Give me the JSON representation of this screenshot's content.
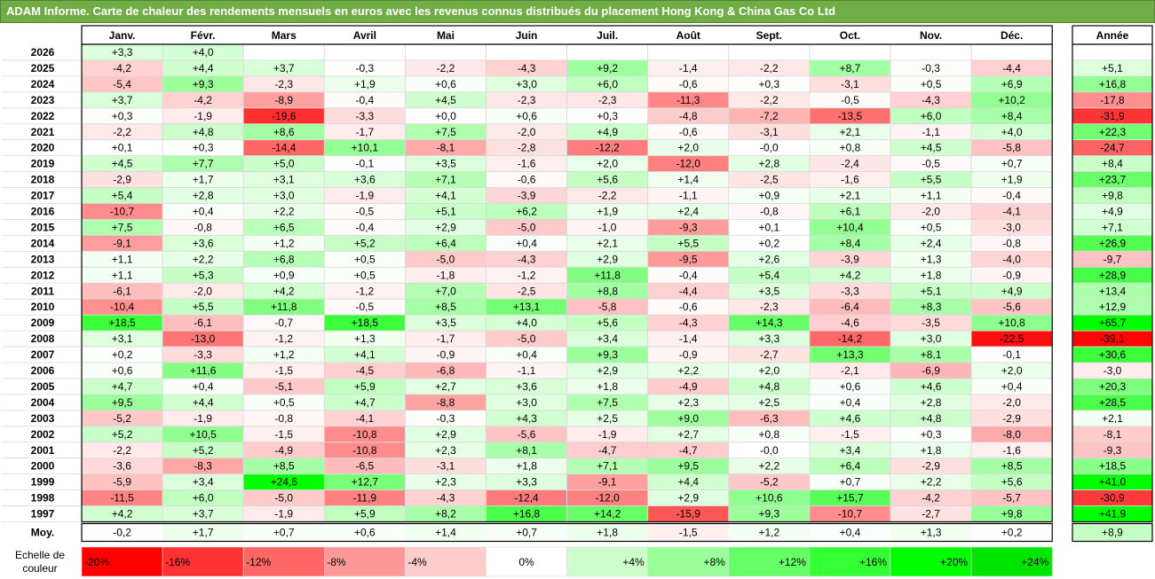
{
  "title": "ADAM Informe. Carte de chaleur des rendements mensuels en euros avec les revenus connus distribués du placement Hong Kong & China Gas Co Ltd",
  "chart_data": {
    "type": "heatmap",
    "months": [
      "Janv.",
      "Févr.",
      "Mars",
      "Avril",
      "Mai",
      "Juin",
      "Juil.",
      "Août",
      "Sept.",
      "Oct.",
      "Nov.",
      "Déc."
    ],
    "year_column_label": "Année",
    "average_row_label": "Moy.",
    "rows": [
      {
        "year": "2026",
        "values": [
          "+3,3",
          "+4,0",
          "",
          "",
          "",
          "",
          "",
          "",
          "",
          "",
          "",
          ""
        ],
        "annual": ""
      },
      {
        "year": "2025",
        "values": [
          "-4,2",
          "+4,4",
          "+3,7",
          "-0,3",
          "-2,2",
          "-4,3",
          "+9,2",
          "-1,4",
          "-2,2",
          "+8,7",
          "-0,3",
          "-4,4"
        ],
        "annual": "+5,1"
      },
      {
        "year": "2024",
        "values": [
          "-5,4",
          "+9,3",
          "-2,3",
          "+1,9",
          "+0,6",
          "+3,0",
          "+6,0",
          "-0,6",
          "+0,3",
          "-3,1",
          "+0,5",
          "+6,9"
        ],
        "annual": "+16,8"
      },
      {
        "year": "2023",
        "values": [
          "+3,7",
          "-4,2",
          "-8,9",
          "-0,4",
          "+4,5",
          "-2,3",
          "-2,3",
          "-11,3",
          "-2,2",
          "-0,5",
          "-4,3",
          "+10,2"
        ],
        "annual": "-17,8"
      },
      {
        "year": "2022",
        "values": [
          "+0,3",
          "-1,9",
          "-19,6",
          "-3,3",
          "+0,0",
          "+0,6",
          "+0,3",
          "-4,8",
          "-7,2",
          "-13,5",
          "+6,0",
          "+8,4"
        ],
        "annual": "-31,9"
      },
      {
        "year": "2021",
        "values": [
          "-2,2",
          "+4,8",
          "+8,6",
          "-1,7",
          "+7,5",
          "-2,0",
          "+4,9",
          "-0,6",
          "-3,1",
          "+2,1",
          "-1,1",
          "+4,0"
        ],
        "annual": "+22,3"
      },
      {
        "year": "2020",
        "values": [
          "+0,1",
          "+0,3",
          "-14,4",
          "+10,1",
          "-8,1",
          "-2,8",
          "-12,2",
          "+2,0",
          "-0,0",
          "+0,8",
          "+4,5",
          "-5,8"
        ],
        "annual": "-24,7"
      },
      {
        "year": "2019",
        "values": [
          "+4,5",
          "+7,7",
          "+5,0",
          "-0,1",
          "+3,5",
          "-1,6",
          "+2,0",
          "-12,0",
          "+2,8",
          "-2,4",
          "-0,5",
          "+0,7"
        ],
        "annual": "+8,4"
      },
      {
        "year": "2018",
        "values": [
          "-2,9",
          "+1,7",
          "+3,1",
          "+3,6",
          "+7,1",
          "-0,6",
          "+5,6",
          "+1,4",
          "-2,5",
          "-1,6",
          "+5,5",
          "+1,9"
        ],
        "annual": "+23,7"
      },
      {
        "year": "2017",
        "values": [
          "+5,4",
          "+2,8",
          "+3,0",
          "-1,9",
          "+4,1",
          "-3,9",
          "-2,2",
          "-1,1",
          "+0,9",
          "+2,1",
          "+1,1",
          "-0,4"
        ],
        "annual": "+9,8"
      },
      {
        "year": "2016",
        "values": [
          "-10,7",
          "+0,4",
          "+2,2",
          "-0,5",
          "+5,1",
          "+6,2",
          "+1,9",
          "+2,4",
          "-0,8",
          "+6,1",
          "-2,0",
          "-4,1"
        ],
        "annual": "+4,9"
      },
      {
        "year": "2015",
        "values": [
          "+7,5",
          "-0,8",
          "+6,5",
          "-0,4",
          "+2,9",
          "-5,0",
          "-1,0",
          "-9,3",
          "+0,1",
          "+10,4",
          "+0,5",
          "-3,0"
        ],
        "annual": "+7,1"
      },
      {
        "year": "2014",
        "values": [
          "-9,1",
          "+3,6",
          "+1,2",
          "+5,2",
          "+6,4",
          "+0,4",
          "+2,1",
          "+5,5",
          "+0,2",
          "+8,4",
          "+2,4",
          "-0,8"
        ],
        "annual": "+26,9"
      },
      {
        "year": "2013",
        "values": [
          "+1,1",
          "+2,2",
          "+6,8",
          "+0,5",
          "-5,0",
          "-4,3",
          "+2,9",
          "-9,5",
          "+2,6",
          "-3,9",
          "+1,3",
          "-4,0"
        ],
        "annual": "-9,7"
      },
      {
        "year": "2012",
        "values": [
          "+1,1",
          "+5,3",
          "+0,9",
          "+0,5",
          "-1,8",
          "-1,2",
          "+11,8",
          "-0,4",
          "+5,4",
          "+4,2",
          "+1,8",
          "-0,9"
        ],
        "annual": "+28,9"
      },
      {
        "year": "2011",
        "values": [
          "-6,1",
          "-2,0",
          "+4,2",
          "-1,2",
          "+7,0",
          "-2,5",
          "+8,8",
          "-4,4",
          "+3,5",
          "-3,3",
          "+5,1",
          "+4,9"
        ],
        "annual": "+13,4"
      },
      {
        "year": "2010",
        "values": [
          "-10,4",
          "+5,5",
          "+11,8",
          "-0,5",
          "+8,5",
          "+13,1",
          "-5,8",
          "-0,6",
          "-2,3",
          "-6,4",
          "+8,3",
          "-5,6"
        ],
        "annual": "+12,9"
      },
      {
        "year": "2009",
        "values": [
          "+18,5",
          "-6,1",
          "-0,7",
          "+18,5",
          "+3,5",
          "+4,0",
          "+5,6",
          "-4,3",
          "+14,3",
          "-4,6",
          "-3,5",
          "+10,8"
        ],
        "annual": "+65,7"
      },
      {
        "year": "2008",
        "values": [
          "+3,1",
          "-13,0",
          "-1,2",
          "+1,3",
          "-1,7",
          "-5,0",
          "+3,4",
          "-1,4",
          "+3,3",
          "-14,2",
          "+3,0",
          "-22,5"
        ],
        "annual": "-39,1"
      },
      {
        "year": "2007",
        "values": [
          "+0,2",
          "-3,3",
          "+1,2",
          "+4,1",
          "-0,9",
          "+0,4",
          "+9,3",
          "-0,9",
          "-2,7",
          "+13,3",
          "+8,1",
          "-0,1"
        ],
        "annual": "+30,6"
      },
      {
        "year": "2006",
        "values": [
          "+0,6",
          "+11,6",
          "-1,5",
          "-4,5",
          "-6,8",
          "-1,1",
          "+2,9",
          "+2,2",
          "+2,0",
          "-2,1",
          "-6,9",
          "+2,0"
        ],
        "annual": "-3,0"
      },
      {
        "year": "2005",
        "values": [
          "+4,7",
          "+0,4",
          "-5,1",
          "+5,9",
          "+2,7",
          "+3,6",
          "+1,8",
          "-4,9",
          "+4,8",
          "+0,6",
          "+4,6",
          "+0,4"
        ],
        "annual": "+20,3"
      },
      {
        "year": "2004",
        "values": [
          "+9,5",
          "+4,4",
          "+0,5",
          "+4,7",
          "-8,8",
          "+3,0",
          "+7,5",
          "+2,3",
          "+2,5",
          "+0,4",
          "+2,8",
          "-2,0"
        ],
        "annual": "+28,5"
      },
      {
        "year": "2003",
        "values": [
          "-5,2",
          "-1,9",
          "-0,8",
          "-4,1",
          "-0,3",
          "+4,3",
          "+2,5",
          "+9,0",
          "-6,3",
          "+4,6",
          "+4,8",
          "-2,9"
        ],
        "annual": "+2,1"
      },
      {
        "year": "2002",
        "values": [
          "+5,2",
          "+10,5",
          "-1,5",
          "-10,8",
          "+2,9",
          "-5,6",
          "-1,9",
          "+2,7",
          "+0,8",
          "-1,5",
          "+0,3",
          "-8,0"
        ],
        "annual": "-8,1"
      },
      {
        "year": "2001",
        "values": [
          "-2,2",
          "+5,2",
          "-4,9",
          "-10,8",
          "+2,3",
          "+8,1",
          "-4,7",
          "-4,7",
          "-0,0",
          "+3,4",
          "+1,8",
          "-1,6"
        ],
        "annual": "-9,3"
      },
      {
        "year": "2000",
        "values": [
          "-3,6",
          "-8,3",
          "+8,5",
          "-6,5",
          "-3,1",
          "+1,8",
          "+7,1",
          "+9,5",
          "+2,2",
          "+6,4",
          "-2,9",
          "+8,5"
        ],
        "annual": "+18,5"
      },
      {
        "year": "1999",
        "values": [
          "-5,9",
          "+3,4",
          "+24,6",
          "+12,7",
          "+2,3",
          "+3,3",
          "-9,1",
          "+4,4",
          "-5,2",
          "+0,7",
          "+2,2",
          "+5,6"
        ],
        "annual": "+41,0"
      },
      {
        "year": "1998",
        "values": [
          "-11,5",
          "+6,0",
          "-5,0",
          "-11,9",
          "-4,3",
          "-12,4",
          "-12,0",
          "+2,9",
          "+10,6",
          "+15,7",
          "-4,2",
          "-5,7"
        ],
        "annual": "-30,9"
      },
      {
        "year": "1997",
        "values": [
          "+4,2",
          "+3,7",
          "-1,9",
          "+5,9",
          "+8,2",
          "+16,8",
          "+14,2",
          "-15,9",
          "+9,3",
          "-10,7",
          "-2,7",
          "+9,8"
        ],
        "annual": "+41,9"
      }
    ],
    "average": {
      "values": [
        "-0,2",
        "+1,7",
        "+0,7",
        "+0,6",
        "+1,4",
        "+0,7",
        "+1,8",
        "-1,5",
        "+1,2",
        "+0,4",
        "+1,3",
        "+0,2"
      ],
      "annual": "+8,9"
    },
    "scale_label": "Echelle de couleur",
    "scale": [
      {
        "label": "-20%",
        "value": -20,
        "color": "#ff0000"
      },
      {
        "label": "-16%",
        "value": -16,
        "color": "#ff3333"
      },
      {
        "label": "-12%",
        "value": -12,
        "color": "#ff6666"
      },
      {
        "label": "-8%",
        "value": -8,
        "color": "#ff9999"
      },
      {
        "label": "-4%",
        "value": -4,
        "color": "#ffcccc"
      },
      {
        "label": "0%",
        "value": 0,
        "color": "#ffffff"
      },
      {
        "label": "+4%",
        "value": 4,
        "color": "#ccffcc"
      },
      {
        "label": "+8%",
        "value": 8,
        "color": "#99ff99"
      },
      {
        "label": "+12%",
        "value": 12,
        "color": "#66ff66"
      },
      {
        "label": "+16%",
        "value": 16,
        "color": "#33ff33"
      },
      {
        "label": "+20%",
        "value": 20,
        "color": "#00ff00"
      },
      {
        "label": "+24%",
        "value": 24,
        "color": "#00e600"
      }
    ],
    "annual_scale_max": 40
  }
}
